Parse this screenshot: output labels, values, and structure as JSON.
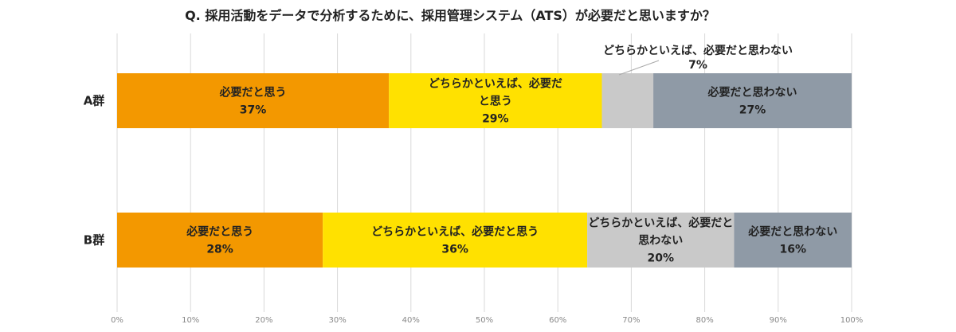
{
  "chart_data": {
    "type": "bar",
    "stacked": true,
    "orientation": "horizontal",
    "title": "Q. 採用活動をデータで分析するために、採用管理システム（ATS）が必要だと思いますか？",
    "categories": [
      "A群",
      "B群"
    ],
    "xlim": [
      0,
      100
    ],
    "grid": true,
    "x_ticks": [
      "0%",
      "10%",
      "20%",
      "30%",
      "40%",
      "50%",
      "60%",
      "70%",
      "80%",
      "90%",
      "100%"
    ],
    "series": [
      {
        "name": "必要だと思う",
        "color": "#F39800",
        "values": [
          37,
          28
        ],
        "label_lines": [
          [
            "必要だと思う"
          ],
          [
            "必要だと思う"
          ]
        ]
      },
      {
        "name": "どちらかといえば、必要だと思う",
        "color": "#FFE100",
        "values": [
          29,
          36
        ],
        "label_lines": [
          [
            "どちらかといえば、必要だ",
            "と思う"
          ],
          [
            "どちらかといえば、必要だと思う"
          ]
        ]
      },
      {
        "name": "どちらかといえば、必要だと思わない",
        "color": "#C9C9C9",
        "values": [
          7,
          20
        ],
        "label_lines": [
          [
            "どちらかといえば、必要だと思わない"
          ],
          [
            "どちらかといえば、必要だと",
            "思わない"
          ]
        ]
      },
      {
        "name": "必要だと思わない",
        "color": "#8F9AA6",
        "values": [
          27,
          16
        ],
        "label_lines": [
          [
            "必要だと思わない"
          ],
          [
            "必要だと思わない"
          ]
        ]
      }
    ]
  }
}
